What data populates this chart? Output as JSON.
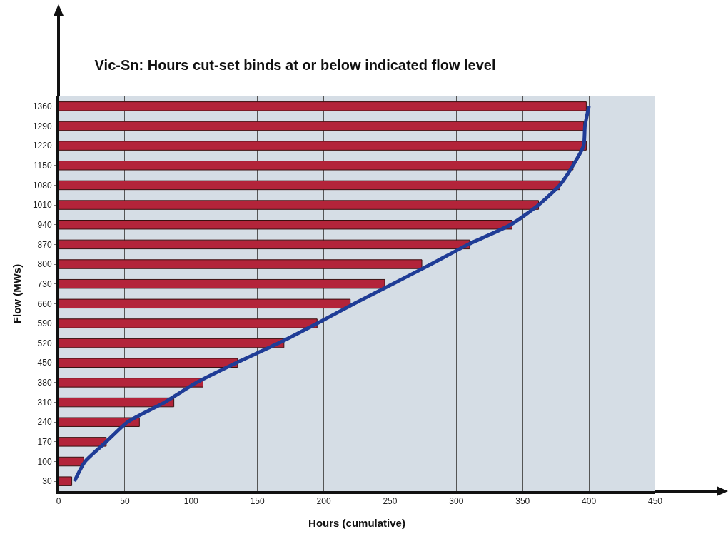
{
  "chart_data": {
    "type": "bar",
    "orientation": "horizontal",
    "title": "Vic-Sn: Hours cut-set binds at or below indicated flow level",
    "xlabel": "Hours (cumulative)",
    "ylabel": "Flow (MWs)",
    "categories": [
      "1360",
      "1290",
      "1220",
      "1150",
      "1080",
      "1010",
      "940",
      "870",
      "800",
      "730",
      "660",
      "590",
      "520",
      "450",
      "380",
      "310",
      "240",
      "170",
      "100",
      "30"
    ],
    "series": [
      {
        "color": "#b3243a",
        "values": [
          398,
          396,
          398,
          388,
          378,
          362,
          342,
          310,
          274,
          246,
          220,
          195,
          170,
          135,
          109,
          87,
          61,
          36,
          19,
          10
        ]
      },
      {
        "type": "line",
        "color": "#1f3c96",
        "values": [
          400,
          397,
          396,
          388,
          378,
          362,
          341,
          309,
          281,
          252,
          223,
          195,
          166,
          134,
          104,
          80,
          52,
          36,
          20,
          12
        ]
      }
    ],
    "xlim": [
      0,
      450
    ],
    "xticks": [
      0,
      50,
      100,
      150,
      200,
      250,
      300,
      350,
      400,
      450
    ],
    "grid": "x",
    "marker": "none"
  }
}
